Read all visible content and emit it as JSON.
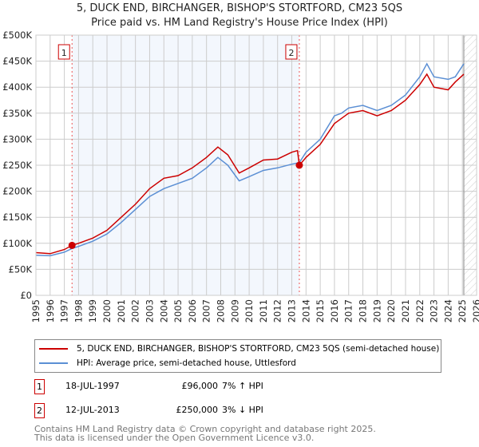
{
  "chart_data": {
    "type": "line",
    "title": "5, DUCK END, BIRCHANGER, BISHOP'S STORTFORD, CM23 5QS",
    "subtitle": "Price paid vs. HM Land Registry's House Price Index (HPI)",
    "xlim": [
      1995,
      2026
    ],
    "ylim": [
      0,
      500000
    ],
    "x_ticks": [
      "1995",
      "1996",
      "1997",
      "1998",
      "1999",
      "2000",
      "2001",
      "2002",
      "2003",
      "2004",
      "2005",
      "2006",
      "2007",
      "2008",
      "2009",
      "2010",
      "2011",
      "2012",
      "2013",
      "2014",
      "2015",
      "2016",
      "2017",
      "2018",
      "2019",
      "2020",
      "2021",
      "2022",
      "2023",
      "2024",
      "2025",
      "2026"
    ],
    "y_ticks": [
      {
        "v": 0,
        "l": "£0"
      },
      {
        "v": 50000,
        "l": "£50K"
      },
      {
        "v": 100000,
        "l": "£100K"
      },
      {
        "v": 150000,
        "l": "£150K"
      },
      {
        "v": 200000,
        "l": "£200K"
      },
      {
        "v": 250000,
        "l": "£250K"
      },
      {
        "v": 300000,
        "l": "£300K"
      },
      {
        "v": 350000,
        "l": "£350K"
      },
      {
        "v": 400000,
        "l": "£400K"
      },
      {
        "v": 450000,
        "l": "£450K"
      },
      {
        "v": 500000,
        "l": "£500K"
      }
    ],
    "grid": true,
    "shaded_range": [
      1997.54,
      2013.53
    ],
    "future_hatch_from": 2025.1,
    "series": [
      {
        "name": "5, DUCK END, BIRCHANGER, BISHOP'S STORTFORD, CM23 5QS (semi-detached house)",
        "color": "#cc0000",
        "x": [
          1995,
          1996,
          1997,
          1997.54,
          1998,
          1999,
          2000,
          2001,
          2002,
          2003,
          2004,
          2005,
          2006,
          2007,
          2007.8,
          2008.5,
          2009.3,
          2010,
          2011,
          2012,
          2013,
          2013.4,
          2013.53,
          2014,
          2015,
          2016,
          2016.5,
          2017,
          2018,
          2019,
          2020,
          2021,
          2022,
          2022.5,
          2023,
          2024,
          2024.5,
          2025.1
        ],
        "y": [
          82000,
          80000,
          88000,
          96000,
          100000,
          110000,
          125000,
          150000,
          175000,
          205000,
          225000,
          230000,
          245000,
          265000,
          285000,
          270000,
          235000,
          245000,
          260000,
          262000,
          275000,
          278000,
          250000,
          265000,
          290000,
          330000,
          340000,
          350000,
          355000,
          345000,
          355000,
          375000,
          405000,
          425000,
          400000,
          395000,
          410000,
          425000
        ]
      },
      {
        "name": "HPI: Average price, semi-detached house, Uttlesford",
        "color": "#5b8fd4",
        "x": [
          1995,
          1996,
          1997,
          1997.54,
          1998,
          1999,
          2000,
          2001,
          2002,
          2003,
          2004,
          2005,
          2006,
          2007,
          2007.8,
          2008.5,
          2009.3,
          2010,
          2011,
          2012,
          2013,
          2013.53,
          2014,
          2015,
          2016,
          2016.5,
          2017,
          2018,
          2019,
          2020,
          2021,
          2022,
          2022.5,
          2023,
          2024,
          2024.5,
          2025.1
        ],
        "y": [
          77000,
          76000,
          83000,
          90000,
          94000,
          104000,
          118000,
          140000,
          165000,
          190000,
          205000,
          215000,
          225000,
          245000,
          265000,
          250000,
          220000,
          228000,
          240000,
          245000,
          252000,
          255000,
          275000,
          300000,
          345000,
          350000,
          360000,
          365000,
          355000,
          365000,
          385000,
          420000,
          445000,
          420000,
          415000,
          420000,
          445000
        ]
      }
    ],
    "annotations": [
      {
        "label": "1",
        "x": 1997.54,
        "y": 96000
      },
      {
        "label": "2",
        "x": 2013.53,
        "y": 250000
      }
    ]
  },
  "legend": [
    "5, DUCK END, BIRCHANGER, BISHOP'S STORTFORD, CM23 5QS (semi-detached house)",
    "HPI: Average price, semi-detached house, Uttlesford"
  ],
  "sales": [
    {
      "num": "1",
      "date": "18-JUL-1997",
      "price": "£96,000",
      "hpi": "7% ↑ HPI"
    },
    {
      "num": "2",
      "date": "12-JUL-2013",
      "price": "£250,000",
      "hpi": "3% ↓ HPI"
    }
  ],
  "footer": [
    "Contains HM Land Registry data © Crown copyright and database right 2025.",
    "This data is licensed under the Open Government Licence v3.0."
  ]
}
